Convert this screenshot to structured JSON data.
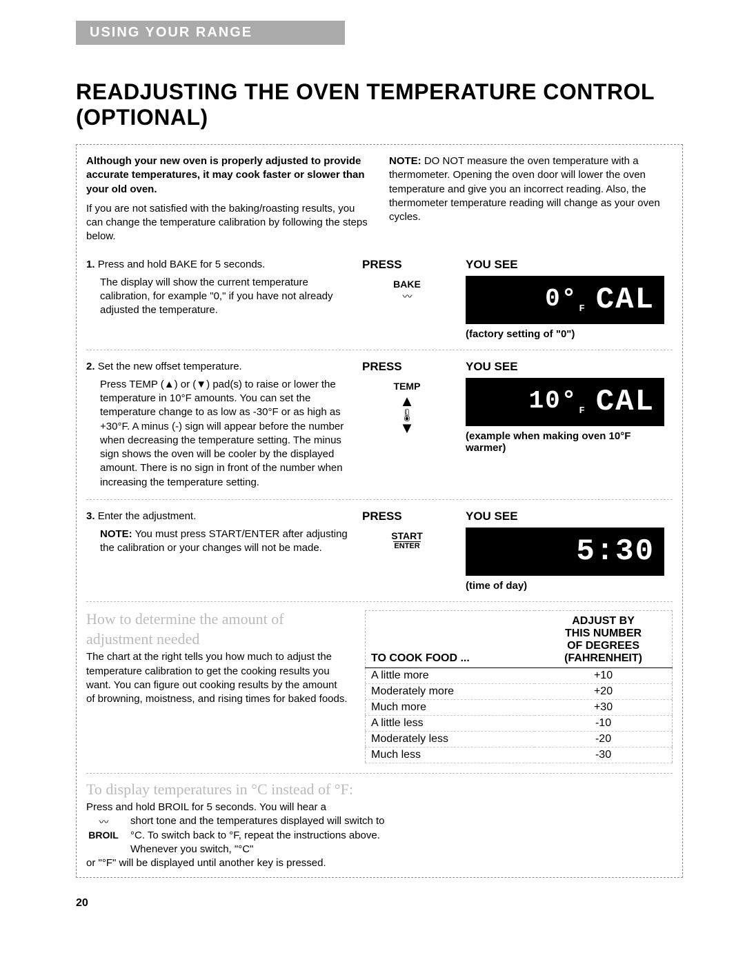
{
  "banner": "USING YOUR RANGE",
  "title": "READJUSTING THE OVEN TEMPERATURE CONTROL (OPTIONAL)",
  "intro": {
    "leftBold": "Although your new oven is properly adjusted to provide accurate temperatures, it may cook faster or slower than your old oven.",
    "leftPara": "If you are not satisfied with the baking/roasting results, you can change the temperature calibration by following the steps below.",
    "rightNoteLabel": "NOTE:",
    "rightNote": " DO NOT measure the oven temperature with a thermometer. Opening the oven door will lower the oven temperature and give you an incorrect reading. Also, the thermometer temperature reading will change as your oven cycles."
  },
  "headers": {
    "press": "PRESS",
    "youSee": "YOU SEE"
  },
  "step1": {
    "num": "1.",
    "title": "Press and hold BAKE for 5 seconds.",
    "body": "The display will show the current temperature calibration, for example \"0,\" if you have not already adjusted the temperature.",
    "button": "BAKE",
    "displayLeft": "0°",
    "displayF": "F",
    "displayRight": "CAL",
    "caption": "(factory setting of \"0\")"
  },
  "step2": {
    "num": "2.",
    "title": "Set the new offset temperature.",
    "body": "Press TEMP (▲) or (▼) pad(s) to raise or lower the temperature in 10°F amounts. You can set the temperature change to as low as -30°F or as high as +30°F. A minus (-) sign will appear before the number when decreasing the temperature setting. The minus sign shows the oven will be cooler by the displayed amount. There is no sign in front of the number when increasing the temperature setting.",
    "button": "TEMP",
    "displayLeft": "10°",
    "displayF": "F",
    "displayRight": "CAL",
    "caption": "(example when making oven 10°F warmer)"
  },
  "step3": {
    "num": "3.",
    "title": "Enter the adjustment.",
    "noteLabel": "NOTE:",
    "body": " You must press START/ENTER after adjusting the calibration or your changes will not be made.",
    "button": "START",
    "buttonSub": "ENTER",
    "displayRight": "5:30",
    "caption": "(time of day)"
  },
  "adjust": {
    "heading1": "How to determine the amount of",
    "heading2": "adjustment needed",
    "text": "The chart at the right tells you how much to adjust the temperature calibration to get the cooking results you want. You can figure out cooking results by the amount of browning, moistness, and rising times for baked foods.",
    "col1": "TO COOK FOOD ...",
    "col2a": "ADJUST BY",
    "col2b": "THIS NUMBER",
    "col2c": "OF DEGREES",
    "col2d": "(FAHRENHEIT)",
    "rows": [
      {
        "label": "A little more",
        "val": "+10"
      },
      {
        "label": "Moderately more",
        "val": "+20"
      },
      {
        "label": "Much more",
        "val": "+30"
      },
      {
        "label": "A little less",
        "val": "-10"
      },
      {
        "label": "Moderately less",
        "val": "-20"
      },
      {
        "label": "Much less",
        "val": "-30"
      }
    ]
  },
  "celsius": {
    "heading": "To display temperatures in °C instead of °F:",
    "line1": "Press and hold BROIL for 5 seconds. You will hear a",
    "button": "BROIL",
    "line2": "short tone and the temperatures displayed will switch to °C. To switch back to °F, repeat the instructions above. Whenever you switch, \"°C\"",
    "line3": "or \"°F\" will be displayed until another key is pressed."
  },
  "pageNumber": "20"
}
